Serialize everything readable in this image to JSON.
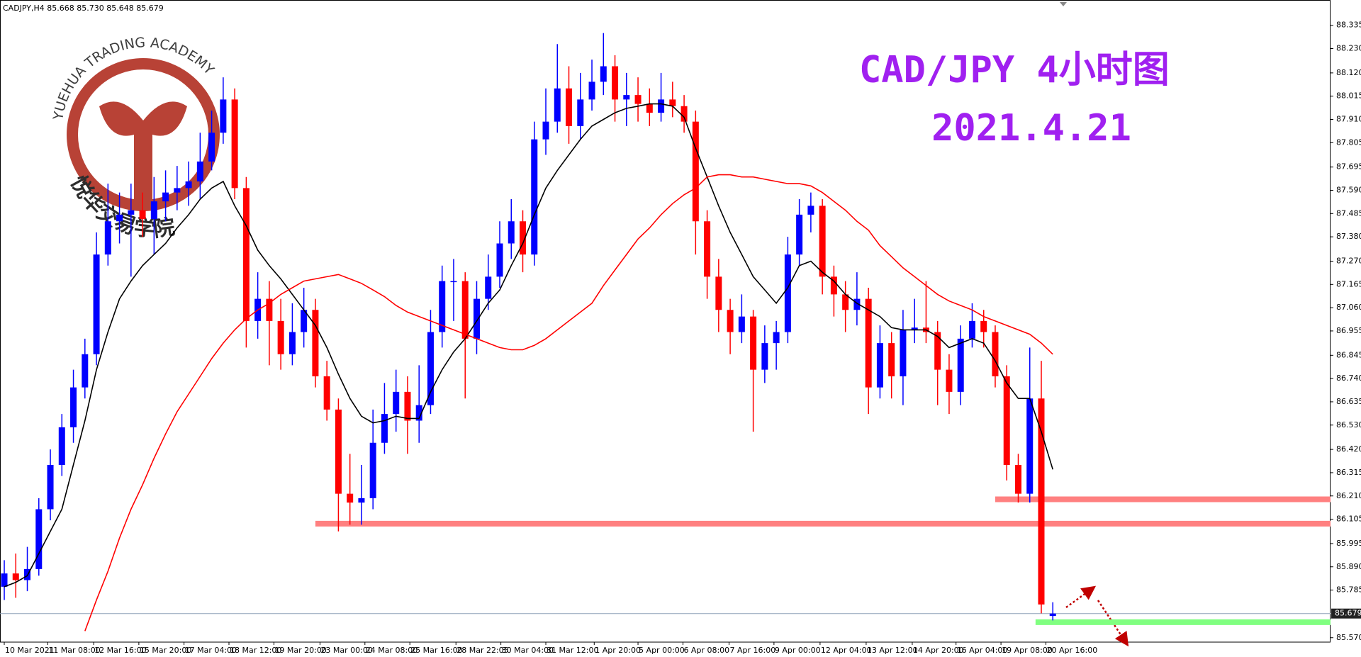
{
  "chart_data": {
    "type": "candlestick",
    "header": "CADJPY,H4  85.668 85.730 85.648 85.679",
    "title": "CAD/JPY 4小时图",
    "subtitle": "2021.4.21",
    "up_color": "#0000ff",
    "down_color": "#ff0000",
    "candles": [
      [
        85.8,
        85.92,
        85.74,
        85.86
      ],
      [
        85.86,
        85.95,
        85.75,
        85.83
      ],
      [
        85.83,
        85.98,
        85.78,
        85.88
      ],
      [
        85.88,
        86.2,
        85.85,
        86.15
      ],
      [
        86.15,
        86.42,
        86.1,
        86.35
      ],
      [
        86.35,
        86.58,
        86.3,
        86.52
      ],
      [
        86.52,
        86.78,
        86.45,
        86.7
      ],
      [
        86.7,
        86.92,
        86.65,
        86.85
      ],
      [
        86.85,
        87.4,
        86.8,
        87.3
      ],
      [
        87.3,
        87.62,
        87.25,
        87.45
      ],
      [
        87.45,
        87.58,
        87.35,
        87.48
      ],
      [
        87.48,
        87.62,
        87.2,
        87.5
      ],
      [
        87.5,
        87.58,
        87.38,
        87.46
      ],
      [
        87.46,
        87.65,
        87.3,
        87.54
      ],
      [
        87.54,
        87.68,
        87.45,
        87.58
      ],
      [
        87.58,
        87.7,
        87.5,
        87.6
      ],
      [
        87.6,
        87.72,
        87.52,
        87.63
      ],
      [
        87.63,
        87.85,
        87.55,
        87.72
      ],
      [
        87.72,
        87.95,
        87.68,
        87.85
      ],
      [
        87.85,
        88.1,
        87.8,
        88.0
      ],
      [
        88.0,
        88.05,
        87.55,
        87.6
      ],
      [
        87.6,
        87.65,
        86.88,
        87.0
      ],
      [
        87.0,
        87.22,
        86.92,
        87.1
      ],
      [
        87.1,
        87.18,
        86.8,
        87.0
      ],
      [
        87.0,
        87.1,
        86.78,
        86.85
      ],
      [
        86.85,
        87.08,
        86.8,
        86.95
      ],
      [
        86.95,
        87.15,
        86.88,
        87.05
      ],
      [
        87.05,
        87.1,
        86.7,
        86.75
      ],
      [
        86.75,
        86.82,
        86.55,
        86.6
      ],
      [
        86.6,
        86.65,
        86.05,
        86.22
      ],
      [
        86.22,
        86.4,
        86.08,
        86.18
      ],
      [
        86.18,
        86.35,
        86.08,
        86.2
      ],
      [
        86.2,
        86.6,
        86.15,
        86.45
      ],
      [
        86.45,
        86.72,
        86.4,
        86.58
      ],
      [
        86.58,
        86.78,
        86.5,
        86.68
      ],
      [
        86.68,
        86.75,
        86.4,
        86.55
      ],
      [
        86.55,
        86.8,
        86.45,
        86.62
      ],
      [
        86.62,
        87.05,
        86.58,
        86.95
      ],
      [
        86.95,
        87.25,
        86.88,
        87.18
      ],
      [
        87.18,
        87.28,
        87.0,
        87.18
      ],
      [
        87.18,
        87.22,
        86.65,
        86.92
      ],
      [
        86.92,
        87.18,
        86.85,
        87.1
      ],
      [
        87.1,
        87.3,
        87.05,
        87.2
      ],
      [
        87.2,
        87.45,
        87.15,
        87.35
      ],
      [
        87.35,
        87.55,
        87.28,
        87.45
      ],
      [
        87.45,
        87.5,
        87.22,
        87.3
      ],
      [
        87.3,
        87.9,
        87.25,
        87.82
      ],
      [
        87.82,
        88.05,
        87.75,
        87.9
      ],
      [
        87.9,
        88.25,
        87.85,
        88.05
      ],
      [
        88.05,
        88.15,
        87.8,
        87.88
      ],
      [
        87.88,
        88.12,
        87.82,
        88.0
      ],
      [
        88.0,
        88.18,
        87.95,
        88.08
      ],
      [
        88.08,
        88.3,
        88.02,
        88.15
      ],
      [
        88.15,
        88.2,
        87.9,
        88.0
      ],
      [
        88.0,
        88.12,
        87.88,
        88.02
      ],
      [
        88.02,
        88.1,
        87.9,
        87.98
      ],
      [
        87.98,
        88.05,
        87.88,
        87.94
      ],
      [
        87.94,
        88.12,
        87.9,
        88.0
      ],
      [
        88.0,
        88.08,
        87.92,
        87.97
      ],
      [
        87.97,
        88.02,
        87.85,
        87.9
      ],
      [
        87.9,
        87.95,
        87.3,
        87.45
      ],
      [
        87.45,
        87.5,
        87.1,
        87.2
      ],
      [
        87.2,
        87.28,
        86.95,
        87.05
      ],
      [
        87.05,
        87.1,
        86.85,
        86.95
      ],
      [
        86.95,
        87.12,
        86.9,
        87.02
      ],
      [
        87.02,
        87.05,
        86.5,
        86.78
      ],
      [
        86.78,
        86.98,
        86.72,
        86.9
      ],
      [
        86.9,
        87.0,
        86.78,
        86.95
      ],
      [
        86.95,
        87.38,
        86.9,
        87.3
      ],
      [
        87.3,
        87.55,
        87.25,
        87.48
      ],
      [
        87.48,
        87.58,
        87.4,
        87.52
      ],
      [
        87.52,
        87.55,
        87.12,
        87.2
      ],
      [
        87.2,
        87.25,
        87.02,
        87.12
      ],
      [
        87.12,
        87.18,
        86.95,
        87.05
      ],
      [
        87.05,
        87.22,
        86.98,
        87.1
      ],
      [
        87.1,
        87.15,
        86.58,
        86.7
      ],
      [
        86.7,
        86.98,
        86.65,
        86.9
      ],
      [
        86.9,
        86.95,
        86.65,
        86.75
      ],
      [
        86.75,
        87.05,
        86.62,
        86.96
      ],
      [
        86.96,
        87.1,
        86.9,
        86.97
      ],
      [
        86.97,
        87.18,
        86.9,
        86.95
      ],
      [
        86.95,
        87.0,
        86.62,
        86.78
      ],
      [
        86.78,
        86.85,
        86.58,
        86.68
      ],
      [
        86.68,
        86.98,
        86.62,
        86.92
      ],
      [
        86.92,
        87.08,
        86.88,
        87.0
      ],
      [
        87.0,
        87.05,
        86.88,
        86.95
      ],
      [
        86.95,
        86.98,
        86.7,
        86.75
      ],
      [
        86.75,
        86.8,
        86.28,
        86.35
      ],
      [
        86.35,
        86.4,
        86.18,
        86.22
      ],
      [
        86.22,
        86.88,
        86.18,
        86.65
      ],
      [
        86.65,
        86.82,
        85.68,
        85.72
      ],
      [
        85.668,
        85.73,
        85.648,
        85.679
      ]
    ],
    "lines": [
      {
        "color": "#000000",
        "values": [
          85.8,
          85.82,
          85.85,
          85.95,
          86.05,
          86.15,
          86.35,
          86.55,
          86.78,
          86.95,
          87.1,
          87.18,
          87.25,
          87.3,
          87.35,
          87.42,
          87.48,
          87.55,
          87.6,
          87.63,
          87.52,
          87.43,
          87.32,
          87.25,
          87.19,
          87.12,
          87.05,
          86.98,
          86.88,
          86.76,
          86.65,
          86.57,
          86.54,
          86.55,
          86.57,
          86.56,
          86.56,
          86.68,
          86.78,
          86.86,
          86.92,
          87.0,
          87.08,
          87.14,
          87.25,
          87.35,
          87.48,
          87.6,
          87.68,
          87.75,
          87.82,
          87.88,
          87.91,
          87.94,
          87.96,
          87.97,
          87.98,
          87.98,
          87.97,
          87.92,
          87.78,
          87.65,
          87.52,
          87.4,
          87.3,
          87.2,
          87.14,
          87.08,
          87.15,
          87.25,
          87.27,
          87.22,
          87.18,
          87.12,
          87.08,
          87.05,
          87.02,
          86.97,
          86.96,
          86.96,
          86.96,
          86.93,
          86.88,
          86.9,
          86.92,
          86.9,
          86.82,
          86.72,
          86.65,
          86.65,
          86.5,
          86.33
        ]
      },
      {
        "color": "#ff0000",
        "values": [
          null,
          null,
          null,
          null,
          null,
          null,
          null,
          85.6,
          85.74,
          85.87,
          86.02,
          86.15,
          86.26,
          86.38,
          86.49,
          86.59,
          86.67,
          86.75,
          86.83,
          86.9,
          86.96,
          87.01,
          87.05,
          87.08,
          87.12,
          87.15,
          87.18,
          87.19,
          87.2,
          87.21,
          87.19,
          87.17,
          87.14,
          87.11,
          87.07,
          87.04,
          87.02,
          87.0,
          86.98,
          86.96,
          86.94,
          86.92,
          86.9,
          86.88,
          86.87,
          86.87,
          86.89,
          86.92,
          86.96,
          87.0,
          87.04,
          87.08,
          87.16,
          87.23,
          87.3,
          87.37,
          87.42,
          87.48,
          87.53,
          87.57,
          87.6,
          87.65,
          87.66,
          87.66,
          87.65,
          87.65,
          87.64,
          87.63,
          87.62,
          87.62,
          87.61,
          87.58,
          87.54,
          87.5,
          87.45,
          87.41,
          87.34,
          87.29,
          87.24,
          87.2,
          87.16,
          87.12,
          87.09,
          87.07,
          87.05,
          87.02,
          87.0,
          86.98,
          86.96,
          86.94,
          86.9,
          86.85
        ]
      }
    ],
    "levels": [
      {
        "value": 86.085,
        "from": 27,
        "color": "#ff8080"
      },
      {
        "value": 86.195,
        "from": 86,
        "color": "#ff8080"
      },
      {
        "value": 85.64,
        "from": 89.5,
        "color": "#80ff80"
      }
    ],
    "price_line": {
      "value": 85.679,
      "label": "85.679",
      "color": "#8fa2b8"
    },
    "xlim": [
      -0.37,
      115.1
    ],
    "ylim": [
      85.55,
      88.43
    ],
    "xticks": [
      {
        "value": 0,
        "label": "10 Mar 2021"
      },
      {
        "value": 3.77,
        "label": "11 Mar 08:00"
      },
      {
        "value": 7.76,
        "label": "12 Mar 16:00"
      },
      {
        "value": 11.68,
        "label": "15 Mar 20:00"
      },
      {
        "value": 15.6,
        "label": "17 Mar 04:00"
      },
      {
        "value": 19.5,
        "label": "18 Mar 12:00"
      },
      {
        "value": 23.4,
        "label": "19 Mar 20:00"
      },
      {
        "value": 27.4,
        "label": "23 Mar 00:00"
      },
      {
        "value": 31.3,
        "label": "24 Mar 08:00"
      },
      {
        "value": 35.2,
        "label": "25 Mar 16:00"
      },
      {
        "value": 39.2,
        "label": "28 Mar 22:05"
      },
      {
        "value": 43.1,
        "label": "30 Mar 04:00"
      },
      {
        "value": 47.0,
        "label": "31 Mar 12:00"
      },
      {
        "value": 51.2,
        "label": "1 Apr 20:00"
      },
      {
        "value": 55.0,
        "label": "5 Apr 00:00"
      },
      {
        "value": 58.9,
        "label": "6 Apr 08:00"
      },
      {
        "value": 62.9,
        "label": "7 Apr 16:00"
      },
      {
        "value": 66.8,
        "label": "9 Apr 00:00"
      },
      {
        "value": 70.8,
        "label": "12 Apr 04:00"
      },
      {
        "value": 74.8,
        "label": "13 Apr 12:00"
      },
      {
        "value": 78.8,
        "label": "14 Apr 20:00"
      },
      {
        "value": 82.6,
        "label": "16 Apr 04:00"
      },
      {
        "value": 86.5,
        "label": "19 Apr 08:00"
      },
      {
        "value": 90.4,
        "label": "20 Apr 16:00"
      }
    ],
    "yticks": [
      {
        "value": 85.57,
        "label": "85.570"
      },
      {
        "value": 85.785,
        "label": "85.785"
      },
      {
        "value": 85.89,
        "label": "85.890"
      },
      {
        "value": 85.995,
        "label": "85.995"
      },
      {
        "value": 86.105,
        "label": "86.105"
      },
      {
        "value": 86.21,
        "label": "86.210"
      },
      {
        "value": 86.315,
        "label": "86.315"
      },
      {
        "value": 86.42,
        "label": "86.420"
      },
      {
        "value": 86.53,
        "label": "86.530"
      },
      {
        "value": 86.635,
        "label": "86.635"
      },
      {
        "value": 86.74,
        "label": "86.740"
      },
      {
        "value": 86.845,
        "label": "86.845"
      },
      {
        "value": 86.955,
        "label": "86.955"
      },
      {
        "value": 87.06,
        "label": "87.060"
      },
      {
        "value": 87.165,
        "label": "87.165"
      },
      {
        "value": 87.27,
        "label": "87.270"
      },
      {
        "value": 87.38,
        "label": "87.380"
      },
      {
        "value": 87.485,
        "label": "87.485"
      },
      {
        "value": 87.59,
        "label": "87.590"
      },
      {
        "value": 87.695,
        "label": "87.695"
      },
      {
        "value": 87.805,
        "label": "87.805"
      },
      {
        "value": 87.91,
        "label": "87.910"
      },
      {
        "value": 88.015,
        "label": "88.015"
      },
      {
        "value": 88.12,
        "label": "88.120"
      },
      {
        "value": 88.23,
        "label": "88.230"
      },
      {
        "value": 88.335,
        "label": "88.335"
      }
    ]
  },
  "logo": {
    "top": "YUEHUA TRADING ACADEMY",
    "bottom": "悦华交易学院"
  }
}
